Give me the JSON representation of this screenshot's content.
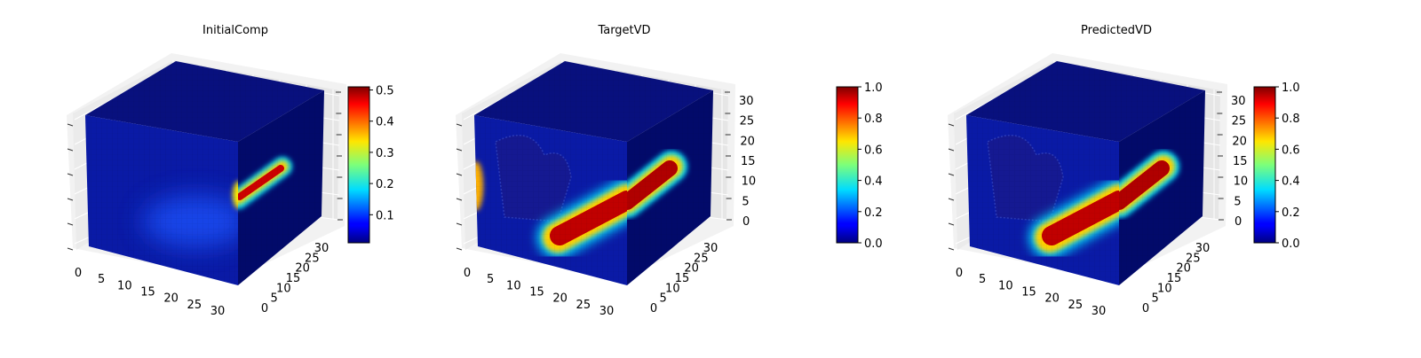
{
  "chart_data": [
    {
      "type": "heatmap",
      "title": "InitialComp",
      "x_ticks": [
        "0",
        "5",
        "10",
        "15",
        "20",
        "25",
        "30"
      ],
      "y_ticks": [
        "0",
        "5",
        "10",
        "15",
        "20",
        "25",
        "30"
      ],
      "z_ticks": [],
      "colorbar": {
        "ticks": [
          "0.1",
          "0.2",
          "0.3",
          "0.4",
          "0.5"
        ],
        "range": [
          0.01,
          0.51
        ]
      },
      "colormap": "jet",
      "feature_peak": 0.5
    },
    {
      "type": "heatmap",
      "title": "TargetVD",
      "x_ticks": [
        "0",
        "5",
        "10",
        "15",
        "20",
        "25",
        "30"
      ],
      "y_ticks": [
        "0",
        "5",
        "10",
        "15",
        "20",
        "25",
        "30"
      ],
      "z_ticks": [
        "0",
        "5",
        "10",
        "15",
        "20",
        "25",
        "30"
      ],
      "colorbar": {
        "ticks": [
          "0.0",
          "0.2",
          "0.4",
          "0.6",
          "0.8",
          "1.0"
        ],
        "range": [
          0.0,
          1.0
        ]
      },
      "colormap": "jet",
      "feature_peak": 1.0
    },
    {
      "type": "heatmap",
      "title": "PredictedVD",
      "x_ticks": [
        "0",
        "5",
        "10",
        "15",
        "20",
        "25",
        "30"
      ],
      "y_ticks": [
        "0",
        "5",
        "10",
        "15",
        "20",
        "25",
        "30"
      ],
      "z_ticks": [
        "0",
        "5",
        "10",
        "15",
        "20",
        "25",
        "30"
      ],
      "colorbar": {
        "ticks": [
          "0.0",
          "0.2",
          "0.4",
          "0.6",
          "0.8",
          "1.0"
        ],
        "range": [
          0.0,
          1.0
        ]
      },
      "colormap": "jet",
      "feature_peak": 1.0
    }
  ]
}
